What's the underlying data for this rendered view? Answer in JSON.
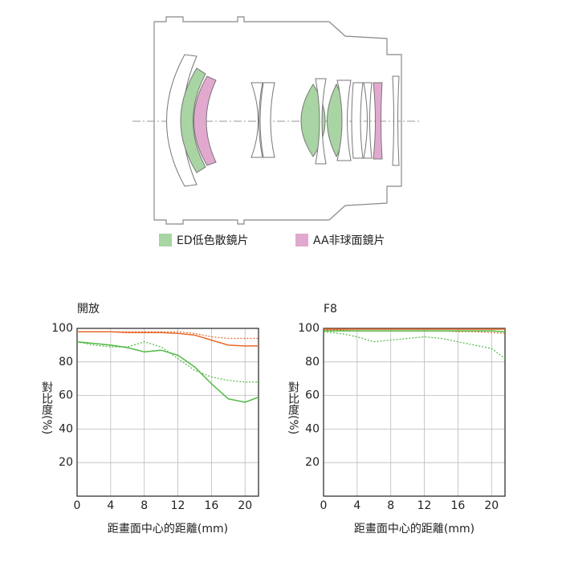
{
  "diagram": {
    "legend": [
      {
        "label": "ED低色散鏡片",
        "color": "#a9d4a3"
      },
      {
        "label": "AA非球面鏡片",
        "color": "#e2a9cf"
      }
    ]
  },
  "chart_data": [
    {
      "type": "line",
      "title": "開放",
      "y_label": "對比度(%)",
      "x_label": "距畫面中心的距離(mm)",
      "x": [
        0,
        2,
        4,
        6,
        8,
        10,
        12,
        14,
        16,
        18,
        20,
        21.6
      ],
      "xlim": [
        0,
        21.6
      ],
      "xticks": [
        0,
        4,
        8,
        12,
        16,
        20
      ],
      "ylim": [
        0,
        100
      ],
      "yticks": [
        20,
        40,
        60,
        80,
        100
      ],
      "grid": true,
      "series": [
        {
          "color": "#e8692a",
          "style": "solid",
          "values": [
            98,
            98,
            98,
            97.5,
            97.5,
            97.5,
            97,
            96,
            93,
            90,
            89.5,
            89.5
          ]
        },
        {
          "color": "#e8692a",
          "style": "dotted",
          "values": [
            98,
            98,
            98,
            98,
            98,
            98,
            98,
            97,
            95,
            94,
            94,
            94
          ]
        },
        {
          "color": "#4fb843",
          "style": "solid",
          "values": [
            92,
            91,
            90,
            88.5,
            86,
            87,
            84,
            77,
            67,
            58,
            56,
            59
          ]
        },
        {
          "color": "#4fb843",
          "style": "dotted",
          "values": [
            92,
            90,
            89,
            89,
            92,
            89,
            82,
            75,
            71,
            69,
            68,
            68
          ]
        }
      ]
    },
    {
      "type": "line",
      "title": "F8",
      "y_label": "對比度(%)",
      "x_label": "距畫面中心的距離(mm)",
      "x": [
        0,
        2,
        4,
        6,
        8,
        10,
        12,
        14,
        16,
        18,
        20,
        21.6
      ],
      "xlim": [
        0,
        21.6
      ],
      "xticks": [
        0,
        4,
        8,
        12,
        16,
        20
      ],
      "ylim": [
        0,
        100
      ],
      "yticks": [
        20,
        40,
        60,
        80,
        100
      ],
      "grid": true,
      "series": [
        {
          "color": "#e8692a",
          "style": "solid",
          "values": [
            99.5,
            99.5,
            99.5,
            99.5,
            99.5,
            99.5,
            99.5,
            99.5,
            99.5,
            99.5,
            99.5,
            99.5
          ]
        },
        {
          "color": "#e8692a",
          "style": "dotted",
          "values": [
            99,
            99,
            98.5,
            98.5,
            98.5,
            98.5,
            98.5,
            98.5,
            98,
            98,
            97.5,
            97
          ]
        },
        {
          "color": "#4fb843",
          "style": "solid",
          "values": [
            98.5,
            98.5,
            98.5,
            98.5,
            98.5,
            98.5,
            98.5,
            98.5,
            98.5,
            98.5,
            98.5,
            98
          ]
        },
        {
          "color": "#4fb843",
          "style": "dotted",
          "values": [
            98,
            97,
            95,
            92,
            93,
            94,
            95,
            94,
            92,
            90,
            88,
            82
          ]
        }
      ]
    }
  ]
}
